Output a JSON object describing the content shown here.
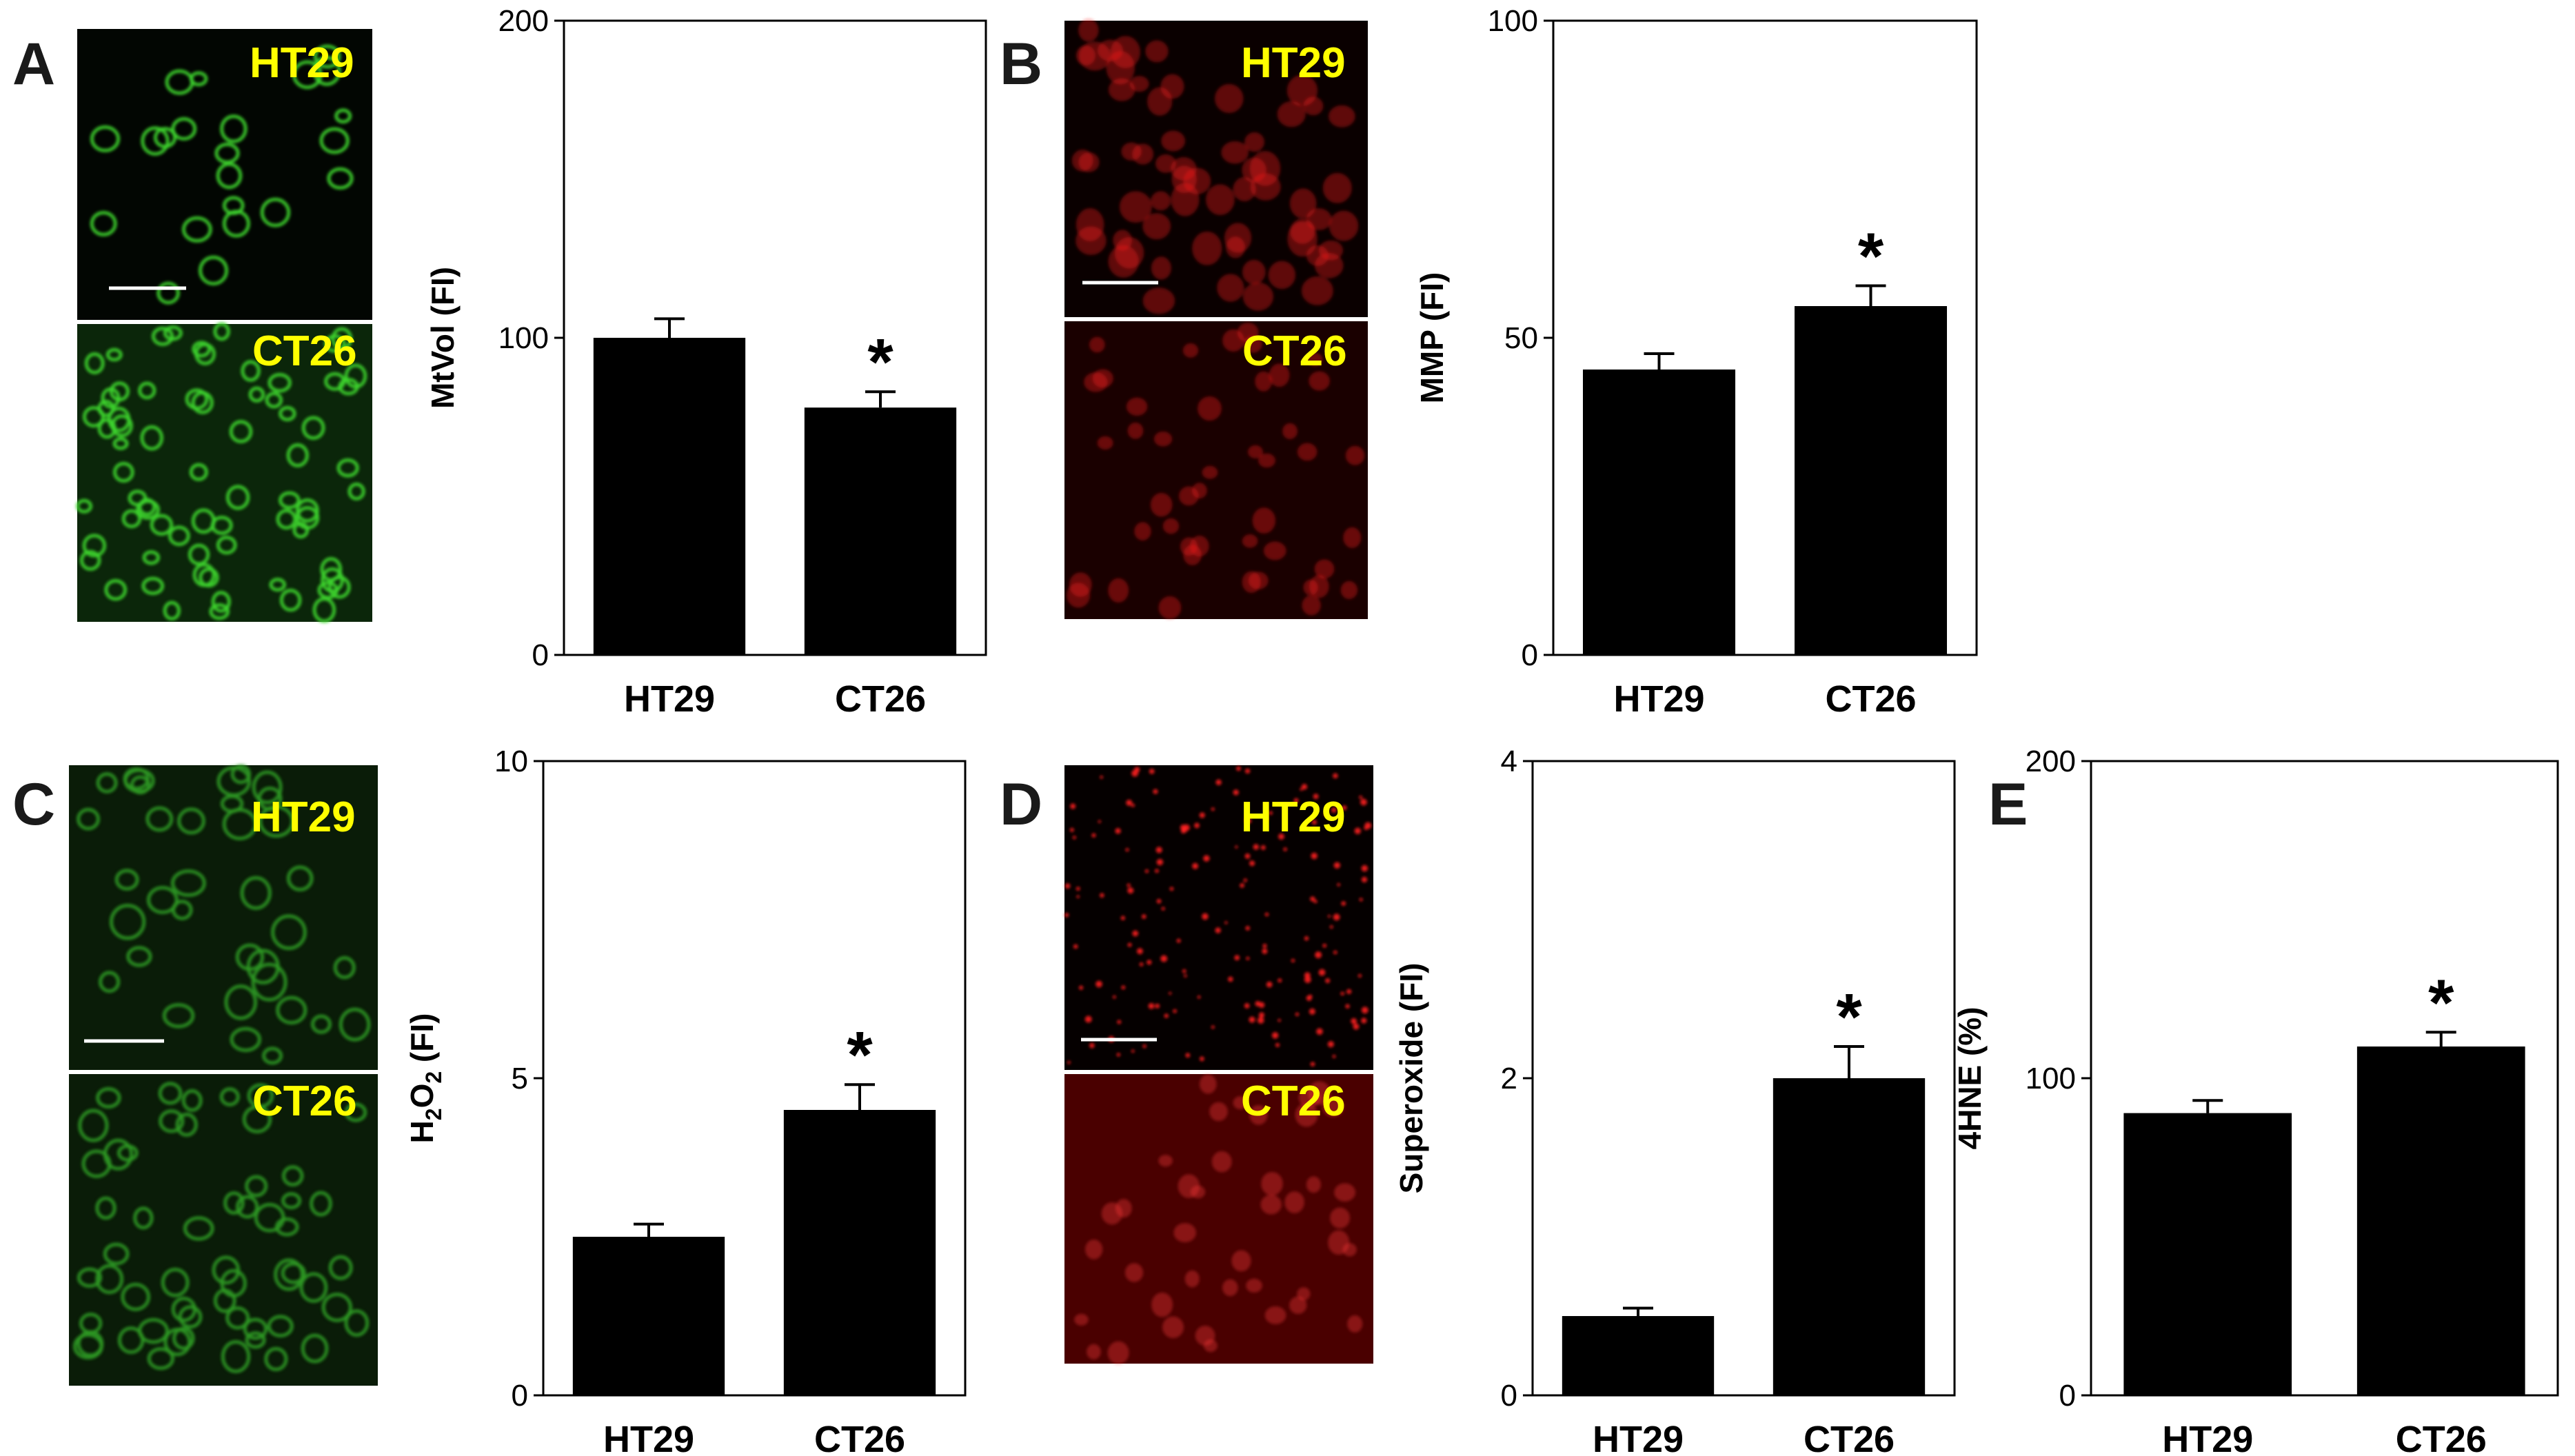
{
  "panels": [
    {
      "letter": "A",
      "image_top_label": "HT29",
      "image_bottom_label": "CT26",
      "image_color": "green"
    },
    {
      "letter": "B",
      "image_top_label": "HT29",
      "image_bottom_label": "CT26",
      "image_color": "red"
    },
    {
      "letter": "C",
      "image_top_label": "HT29",
      "image_bottom_label": "CT26",
      "image_color": "green"
    },
    {
      "letter": "D",
      "image_top_label": "HT29",
      "image_bottom_label": "CT26",
      "image_color": "red"
    },
    {
      "letter": "E"
    }
  ],
  "colors": {
    "bar": "#000000",
    "image_label": "#ffff00",
    "green_cells": "#3ed62e",
    "red_cells": "#ff2020"
  },
  "chart_data": [
    {
      "type": "bar",
      "panel": "A",
      "categories": [
        "HT29",
        "CT26"
      ],
      "values": [
        100,
        78
      ],
      "errors": [
        6,
        5
      ],
      "significance": [
        "",
        "*"
      ],
      "ylabel": "MtVol (FI)",
      "ylim": [
        0,
        200
      ],
      "yticks": [
        "0",
        "100",
        "200"
      ]
    },
    {
      "type": "bar",
      "panel": "B",
      "categories": [
        "HT29",
        "CT26"
      ],
      "values": [
        45,
        55
      ],
      "errors": [
        2.5,
        3.2
      ],
      "significance": [
        "",
        "*"
      ],
      "ylabel": "MMP (FI)",
      "ylim": [
        0,
        100
      ],
      "yticks": [
        "0",
        "50",
        "100"
      ]
    },
    {
      "type": "bar",
      "panel": "C",
      "categories": [
        "HT29",
        "CT26"
      ],
      "values": [
        2.5,
        4.5
      ],
      "errors": [
        0.2,
        0.4
      ],
      "significance": [
        "",
        "*"
      ],
      "ylabel": "H2O2 (FI)",
      "ylim": [
        0,
        10
      ],
      "yticks": [
        "0",
        "5",
        "10"
      ]
    },
    {
      "type": "bar",
      "panel": "D",
      "categories": [
        "HT29",
        "CT26"
      ],
      "values": [
        0.5,
        2.0
      ],
      "errors": [
        0.05,
        0.2
      ],
      "significance": [
        "",
        "*"
      ],
      "ylabel": "Superoxide (FI)",
      "ylim": [
        0,
        4
      ],
      "yticks": [
        "0",
        "2",
        "4"
      ]
    },
    {
      "type": "bar",
      "panel": "E",
      "categories": [
        "HT29",
        "CT26"
      ],
      "values": [
        89,
        110
      ],
      "errors": [
        4,
        4.5
      ],
      "significance": [
        "",
        "*"
      ],
      "ylabel": "4HNE (%)",
      "ylim": [
        0,
        200
      ],
      "yticks": [
        "0",
        "100",
        "200"
      ]
    }
  ]
}
